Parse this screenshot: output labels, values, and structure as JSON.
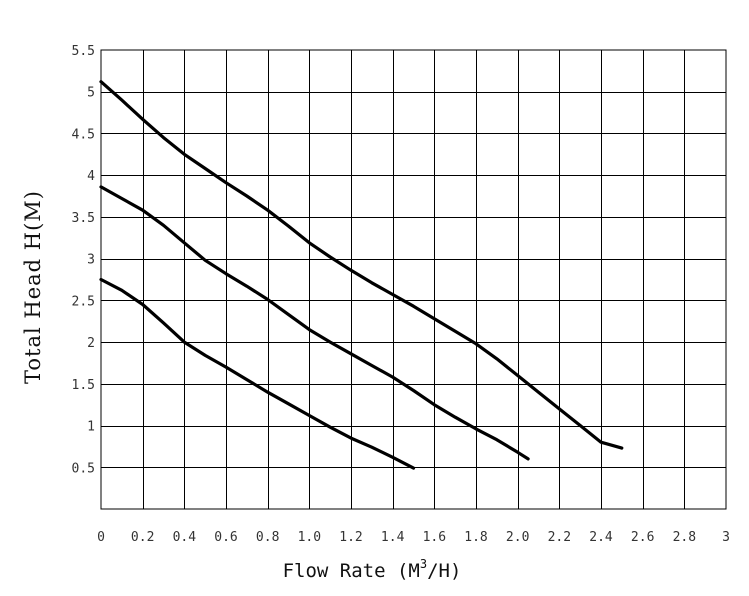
{
  "chart_data": {
    "type": "line",
    "xlabel": "Flow Rate (M",
    "xlabel_sup": "3",
    "xlabel_end": "/H)",
    "ylabel": "Total Head H(M)",
    "xlim": [
      0,
      3
    ],
    "ylim": [
      0,
      5.5
    ],
    "x_ticks": [
      "0",
      "0.2",
      "0.4",
      "0.6",
      "0.8",
      "1.0",
      "1.2",
      "1.4",
      "1.6",
      "1.8",
      "2.0",
      "2.2",
      "2.4",
      "2.6",
      "2.8",
      "3"
    ],
    "x_tick_values": [
      0,
      0.2,
      0.4,
      0.6,
      0.8,
      1.0,
      1.2,
      1.4,
      1.6,
      1.8,
      2.0,
      2.2,
      2.4,
      2.6,
      2.8,
      3.0
    ],
    "y_ticks": [
      "0.5",
      "1",
      "1.5",
      "2",
      "2.5",
      "3",
      "3.5",
      "4",
      "4.5",
      "5",
      "5.5"
    ],
    "y_tick_values": [
      0.5,
      1,
      1.5,
      2,
      2.5,
      3,
      3.5,
      4,
      4.5,
      5,
      5.5
    ],
    "grid": true,
    "series": [
      {
        "x": [
          0,
          0.1,
          0.2,
          0.3,
          0.4,
          0.5,
          0.6,
          0.7,
          0.8,
          0.9,
          1.0,
          1.1,
          1.2,
          1.3,
          1.4,
          1.5,
          1.6,
          1.7,
          1.8,
          1.9,
          2.0,
          2.1,
          2.2,
          2.3,
          2.4,
          2.5
        ],
        "y": [
          5.12,
          4.9,
          4.67,
          4.45,
          4.25,
          4.08,
          3.91,
          3.75,
          3.58,
          3.39,
          3.19,
          3.02,
          2.86,
          2.71,
          2.57,
          2.43,
          2.28,
          2.13,
          1.98,
          1.8,
          1.6,
          1.4,
          1.2,
          1.0,
          0.8,
          0.73
        ]
      },
      {
        "x": [
          0,
          0.1,
          0.2,
          0.3,
          0.4,
          0.5,
          0.6,
          0.7,
          0.8,
          0.9,
          1.0,
          1.1,
          1.2,
          1.3,
          1.4,
          1.5,
          1.6,
          1.7,
          1.8,
          1.9,
          2.0,
          2.05
        ],
        "y": [
          3.86,
          3.72,
          3.58,
          3.4,
          3.19,
          2.98,
          2.82,
          2.67,
          2.51,
          2.33,
          2.15,
          2.0,
          1.86,
          1.72,
          1.58,
          1.42,
          1.25,
          1.1,
          0.96,
          0.83,
          0.68,
          0.6
        ]
      },
      {
        "x": [
          0,
          0.1,
          0.2,
          0.3,
          0.4,
          0.5,
          0.6,
          0.7,
          0.8,
          0.9,
          1.0,
          1.1,
          1.2,
          1.3,
          1.4,
          1.5
        ],
        "y": [
          2.75,
          2.62,
          2.45,
          2.23,
          2.0,
          1.84,
          1.7,
          1.55,
          1.4,
          1.26,
          1.12,
          0.98,
          0.85,
          0.74,
          0.62,
          0.49
        ]
      }
    ]
  }
}
